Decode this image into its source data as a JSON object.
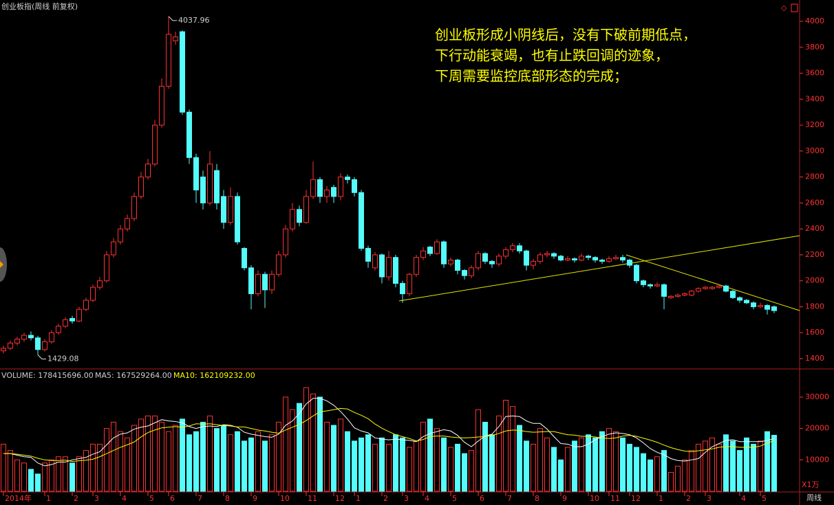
{
  "chart_data": {
    "type": "candlestick",
    "title": "创业板指(周线 前复权)",
    "annotation": [
      "创业板形成小阴线后，没有下破前期低点，",
      "下行动能衰竭，也有止跌回调的迹象，",
      "下周需要监控底部形态的完成；"
    ],
    "volume_label": "VOLUME: 178415696.00",
    "ma5_label": "MA5: 167529264.00",
    "ma10_label": "MA10: 162109232.00",
    "volume_unit": "X1万",
    "period_label": "周线",
    "up_color": "#ff3232",
    "down_color": "#54fcfc",
    "ma5_color": "#ffffff",
    "ma10_color": "#ffff00",
    "ylim": [
      1331,
      4085
    ],
    "yticks": [
      1400,
      1600,
      1800,
      2000,
      2200,
      2400,
      2600,
      2800,
      3000,
      3200,
      3400,
      3600,
      3800,
      4000
    ],
    "volume_ylim": [
      0,
      38300
    ],
    "volume_yticks": [
      10000,
      20000,
      30000
    ],
    "high_mark": 24,
    "low_mark": 5,
    "categories": [
      "2014年",
      null,
      null,
      null,
      null,
      null,
      "1",
      null,
      null,
      null,
      "2",
      null,
      null,
      "3",
      null,
      null,
      null,
      "4",
      null,
      null,
      null,
      "5",
      null,
      null,
      "6",
      null,
      null,
      null,
      "7",
      null,
      null,
      null,
      "8",
      null,
      null,
      null,
      "9",
      null,
      null,
      null,
      "10",
      null,
      null,
      null,
      "11",
      null,
      null,
      null,
      "12",
      null,
      null,
      "1",
      null,
      null,
      null,
      "2",
      null,
      null,
      "3",
      null,
      null,
      "4",
      null,
      null,
      null,
      "5",
      null,
      null,
      null,
      "6",
      null,
      null,
      null,
      "7",
      null,
      null,
      null,
      "8",
      null,
      null,
      null,
      "9",
      null,
      null,
      null,
      "10",
      null,
      null,
      "11",
      null,
      null,
      "12",
      null,
      null,
      null,
      "1",
      null,
      null,
      null,
      "2",
      null,
      null,
      "3",
      null,
      null,
      null,
      null,
      "4",
      null,
      null,
      "5",
      null,
      null
    ],
    "ohlc": [
      [
        1460,
        1500,
        1440,
        1480
      ],
      [
        1480,
        1540,
        1465,
        1520
      ],
      [
        1520,
        1570,
        1500,
        1550
      ],
      [
        1550,
        1600,
        1530,
        1580
      ],
      [
        1580,
        1610,
        1540,
        1560
      ],
      [
        1560,
        1575,
        1429.08,
        1470
      ],
      [
        1470,
        1550,
        1455,
        1530
      ],
      [
        1530,
        1620,
        1515,
        1600
      ],
      [
        1600,
        1670,
        1585,
        1650
      ],
      [
        1650,
        1720,
        1635,
        1700
      ],
      [
        1710,
        1730,
        1670,
        1690
      ],
      [
        1690,
        1800,
        1680,
        1780
      ],
      [
        1780,
        1870,
        1765,
        1850
      ],
      [
        1850,
        1970,
        1835,
        1950
      ],
      [
        1950,
        2030,
        1930,
        2000
      ],
      [
        2000,
        2230,
        1985,
        2200
      ],
      [
        2200,
        2330,
        2180,
        2300
      ],
      [
        2300,
        2430,
        2280,
        2400
      ],
      [
        2400,
        2510,
        2380,
        2480
      ],
      [
        2480,
        2680,
        2460,
        2650
      ],
      [
        2650,
        2840,
        2630,
        2800
      ],
      [
        2800,
        2940,
        2780,
        2900
      ],
      [
        2900,
        3240,
        2880,
        3200
      ],
      [
        3200,
        3560,
        3180,
        3500
      ],
      [
        3500,
        4037.96,
        3480,
        3900
      ],
      [
        3850,
        3920,
        3820,
        3880
      ],
      [
        3920,
        3930,
        3280,
        3300
      ],
      [
        3300,
        3320,
        2900,
        2950
      ],
      [
        2950,
        2980,
        2600,
        2700
      ],
      [
        2800,
        2850,
        2550,
        2600
      ],
      [
        2600,
        3000,
        2580,
        2900
      ],
      [
        2850,
        2900,
        2550,
        2600
      ],
      [
        2650,
        2700,
        2400,
        2450
      ],
      [
        2450,
        2720,
        2430,
        2650
      ],
      [
        2650,
        2680,
        2280,
        2300
      ],
      [
        2250,
        2260,
        2080,
        2100
      ],
      [
        2100,
        2120,
        1780,
        1900
      ],
      [
        1900,
        2080,
        1880,
        2050
      ],
      [
        2050,
        2070,
        1790,
        1930
      ],
      [
        1930,
        2080,
        1900,
        2050
      ],
      [
        2050,
        2230,
        2030,
        2200
      ],
      [
        2200,
        2430,
        2180,
        2400
      ],
      [
        2400,
        2600,
        2380,
        2550
      ],
      [
        2550,
        2580,
        2420,
        2450
      ],
      [
        2450,
        2700,
        2440,
        2650
      ],
      [
        2650,
        2920,
        2630,
        2780
      ],
      [
        2780,
        2800,
        2600,
        2650
      ],
      [
        2650,
        2730,
        2600,
        2700
      ],
      [
        2720,
        2740,
        2600,
        2650
      ],
      [
        2650,
        2830,
        2620,
        2800
      ],
      [
        2800,
        2820,
        2750,
        2780
      ],
      [
        2780,
        2800,
        2650,
        2680
      ],
      [
        2680,
        2700,
        2230,
        2250
      ],
      [
        2250,
        2270,
        2100,
        2150
      ],
      [
        2100,
        2220,
        2080,
        2200
      ],
      [
        2200,
        2210,
        1980,
        2030
      ],
      [
        2030,
        2230,
        2000,
        2180
      ],
      [
        2180,
        2200,
        1950,
        1980
      ],
      [
        1980,
        2000,
        1830,
        1900
      ],
      [
        1900,
        2060,
        1880,
        2050
      ],
      [
        2050,
        2200,
        2030,
        2180
      ],
      [
        2180,
        2260,
        2160,
        2230
      ],
      [
        2260,
        2270,
        2190,
        2210
      ],
      [
        2210,
        2320,
        2200,
        2300
      ],
      [
        2300,
        2310,
        2100,
        2130
      ],
      [
        2130,
        2180,
        2110,
        2160
      ],
      [
        2160,
        2170,
        2050,
        2080
      ],
      [
        2080,
        2090,
        2010,
        2040
      ],
      [
        2040,
        2120,
        2020,
        2100
      ],
      [
        2100,
        2230,
        2080,
        2210
      ],
      [
        2210,
        2220,
        2130,
        2150
      ],
      [
        2150,
        2160,
        2100,
        2130
      ],
      [
        2130,
        2210,
        2110,
        2190
      ],
      [
        2190,
        2260,
        2170,
        2240
      ],
      [
        2240,
        2290,
        2220,
        2270
      ],
      [
        2270,
        2290,
        2210,
        2230
      ],
      [
        2230,
        2240,
        2080,
        2120
      ],
      [
        2120,
        2170,
        2090,
        2150
      ],
      [
        2150,
        2220,
        2130,
        2200
      ],
      [
        2200,
        2230,
        2180,
        2210
      ],
      [
        2210,
        2220,
        2170,
        2190
      ],
      [
        2190,
        2200,
        2150,
        2160
      ],
      [
        2160,
        2190,
        2150,
        2170
      ],
      [
        2170,
        2180,
        2140,
        2160
      ],
      [
        2160,
        2210,
        2150,
        2190
      ],
      [
        2190,
        2200,
        2160,
        2180
      ],
      [
        2180,
        2190,
        2140,
        2160
      ],
      [
        2160,
        2170,
        2130,
        2150
      ],
      [
        2150,
        2190,
        2140,
        2170
      ],
      [
        2170,
        2200,
        2160,
        2180
      ],
      [
        2180,
        2200,
        2140,
        2160
      ],
      [
        2160,
        2170,
        2100,
        2120
      ],
      [
        2120,
        2130,
        1980,
        2000
      ],
      [
        2000,
        2010,
        1950,
        1970
      ],
      [
        1970,
        1980,
        1940,
        1960
      ],
      [
        1960,
        1990,
        1950,
        1970
      ],
      [
        1970,
        1980,
        1780,
        1880
      ],
      [
        1870,
        1890,
        1860,
        1880
      ],
      [
        1880,
        1900,
        1870,
        1890
      ],
      [
        1890,
        1910,
        1880,
        1900
      ],
      [
        1890,
        1930,
        1880,
        1920
      ],
      [
        1920,
        1950,
        1910,
        1940
      ],
      [
        1940,
        1960,
        1930,
        1950
      ],
      [
        1940,
        1960,
        1930,
        1950
      ],
      [
        1950,
        1970,
        1940,
        1960
      ],
      [
        1960,
        1970,
        1910,
        1920
      ],
      [
        1920,
        1930,
        1860,
        1870
      ],
      [
        1870,
        1880,
        1830,
        1850
      ],
      [
        1850,
        1860,
        1820,
        1830
      ],
      [
        1830,
        1840,
        1780,
        1800
      ],
      [
        1800,
        1830,
        1790,
        1810
      ],
      [
        1810,
        1820,
        1740,
        1780
      ],
      [
        1800,
        1810,
        1750,
        1770
      ]
    ],
    "volume": [
      15000,
      13000,
      10000,
      9000,
      7000,
      5500,
      9000,
      10000,
      11000,
      11000,
      9000,
      11000,
      13000,
      15000,
      15000,
      20000,
      22000,
      19000,
      17000,
      21000,
      23000,
      24000,
      24000,
      22000,
      19000,
      21000,
      23000,
      18000,
      19000,
      22000,
      24000,
      20000,
      21000,
      18000,
      19000,
      16000,
      17000,
      19000,
      16000,
      18000,
      22000,
      30000,
      26000,
      28000,
      33000,
      31000,
      30000,
      22000,
      21000,
      23000,
      19000,
      16000,
      17000,
      18000,
      15000,
      17000,
      15000,
      18000,
      17000,
      14000,
      16000,
      22000,
      23000,
      20000,
      17000,
      14000,
      15000,
      12000,
      13000,
      26000,
      22000,
      18000,
      24000,
      29000,
      27000,
      21000,
      16000,
      15000,
      20000,
      17000,
      14000,
      10000,
      14000,
      16000,
      17000,
      18000,
      17000,
      19000,
      20000,
      19000,
      17000,
      15000,
      14000,
      12000,
      10000,
      11000,
      13000,
      6000,
      8000,
      10000,
      13000,
      15000,
      16000,
      17000,
      15000,
      18000,
      16000,
      13000,
      17000,
      15000,
      16000,
      19000,
      17841.5696
    ],
    "ma5": [
      12000,
      12000,
      11500,
      11000,
      10800,
      9000,
      8100,
      8500,
      9300,
      9300,
      10000,
      10400,
      10800,
      11800,
      12600,
      14800,
      17000,
      18200,
      18600,
      19800,
      20400,
      20800,
      21800,
      22800,
      22400,
      22200,
      21800,
      20600,
      20000,
      20600,
      20800,
      20600,
      21200,
      21000,
      20400,
      18800,
      18200,
      17800,
      17400,
      17200,
      18200,
      21000,
      22400,
      24800,
      27800,
      29600,
      29600,
      28800,
      27400,
      25400,
      23000,
      20200,
      19200,
      18600,
      17000,
      16600,
      16400,
      16600,
      16400,
      16200,
      15800,
      17400,
      18400,
      19000,
      19600,
      19200,
      17800,
      15600,
      14200,
      16000,
      17600,
      18200,
      20600,
      23800,
      24000,
      23800,
      22400,
      21600,
      21600,
      19800,
      17400,
      15200,
      15000,
      14200,
      14200,
      15000,
      16400,
      17400,
      18200,
      18600,
      18400,
      18000,
      17000,
      15400,
      13600,
      12400,
      11600,
      10400,
      9800,
      9600,
      10000,
      10400,
      12400,
      14200,
      15200,
      16200,
      16400,
      15800,
      15800,
      15800,
      15800,
      16200,
      16752.9264
    ],
    "ma10": [
      12000,
      12000,
      11800,
      11500,
      11200,
      10500,
      10000,
      9800,
      9800,
      9900,
      9500,
      9700,
      9900,
      10200,
      11000,
      12000,
      13000,
      14000,
      14800,
      15700,
      17300,
      18700,
      19500,
      20200,
      20400,
      20600,
      20400,
      20800,
      21500,
      21400,
      21500,
      21200,
      20900,
      20800,
      20500,
      20500,
      20000,
      19500,
      19200,
      18800,
      18500,
      19500,
      20400,
      21300,
      22500,
      24000,
      25300,
      25600,
      26000,
      26400,
      26200,
      25100,
      24200,
      23100,
      21400,
      20100,
      19000,
      18000,
      17400,
      16800,
      16000,
      16500,
      17400,
      17600,
      17600,
      17300,
      17100,
      17000,
      17100,
      17300,
      17400,
      17800,
      18400,
      19200,
      19500,
      19400,
      19000,
      18800,
      18900,
      19000,
      19000,
      18500,
      18000,
      17900,
      17500,
      17500,
      17300,
      17000,
      16800,
      17000,
      17600,
      17800,
      17500,
      16900,
      16300,
      15600,
      14700,
      13900,
      13300,
      12800,
      12600,
      12900,
      13200,
      13500,
      14000,
      14200,
      14200,
      14000,
      14000,
      14000,
      14400,
      15300,
      16210.9232
    ]
  }
}
